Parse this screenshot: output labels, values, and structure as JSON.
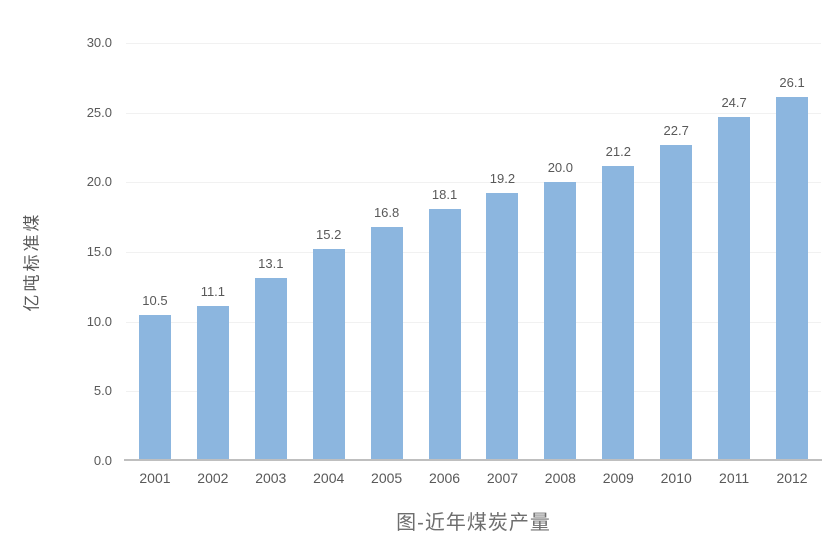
{
  "chart_data": {
    "type": "bar",
    "title": "图-近年煤炭产量",
    "xlabel": "",
    "ylabel": "亿吨标准煤",
    "categories": [
      "2001",
      "2002",
      "2003",
      "2004",
      "2005",
      "2006",
      "2007",
      "2008",
      "2009",
      "2010",
      "2011",
      "2012"
    ],
    "values": [
      10.5,
      11.1,
      13.1,
      15.2,
      16.8,
      18.1,
      19.2,
      20.0,
      21.2,
      22.7,
      24.7,
      26.1
    ],
    "data_labels": [
      "10.5",
      "11.1",
      "13.1",
      "15.2",
      "16.8",
      "18.1",
      "19.2",
      "20.0",
      "21.2",
      "22.7",
      "24.7",
      "26.1"
    ],
    "ylim": [
      0,
      30
    ],
    "ytick_interval": 5,
    "ytick_labels": [
      "0.0",
      "5.0",
      "10.0",
      "15.0",
      "20.0",
      "25.0",
      "30.0"
    ],
    "grid": true,
    "legend": false,
    "legend_position": "none",
    "colors": {
      "bar": "#8cb6df",
      "label_text": "#595959",
      "gridline": "#f1f1f1",
      "axis_line": "#bfbfbf",
      "title_text": "#6e6e6e"
    }
  }
}
